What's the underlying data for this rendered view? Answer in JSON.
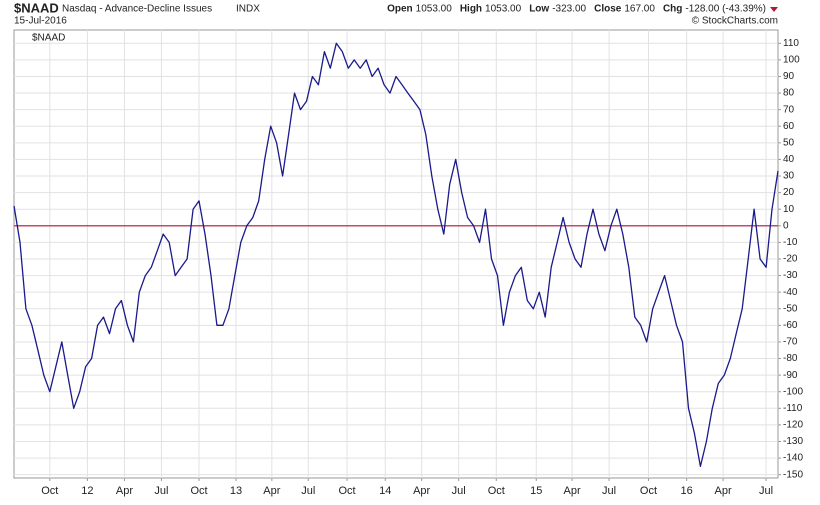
{
  "chart_data": {
    "type": "line",
    "symbol": "$NAAD",
    "title": "Nasdaq - Advance-Decline Issues",
    "exchange": "INDX",
    "date": "15-Jul-2016",
    "stats": [
      {
        "label": "Open",
        "value": "1053.00"
      },
      {
        "label": "High",
        "value": "1053.00"
      },
      {
        "label": "Low",
        "value": "-323.00"
      },
      {
        "label": "Close",
        "value": "167.00"
      },
      {
        "label": "Chg",
        "value": "-128.00 (-43.39%)"
      }
    ],
    "copyright": "© StockCharts.com",
    "series": [
      {
        "name": "$NAAD",
        "color": "#1a1a8c",
        "values": [
          12,
          -10,
          -50,
          -60,
          -75,
          -90,
          -100,
          -85,
          -70,
          -90,
          -110,
          -100,
          -85,
          -80,
          -60,
          -55,
          -65,
          -50,
          -45,
          -60,
          -70,
          -40,
          -30,
          -25,
          -15,
          -5,
          -10,
          -30,
          -25,
          -20,
          10,
          15,
          -5,
          -30,
          -60,
          -60,
          -50,
          -30,
          -10,
          0,
          5,
          15,
          40,
          60,
          50,
          30,
          55,
          80,
          70,
          75,
          90,
          85,
          105,
          95,
          110,
          105,
          95,
          100,
          95,
          100,
          90,
          95,
          85,
          80,
          90,
          85,
          80,
          75,
          70,
          55,
          30,
          10,
          -5,
          25,
          40,
          20,
          5,
          0,
          -10,
          10,
          -20,
          -30,
          -60,
          -40,
          -30,
          -25,
          -45,
          -50,
          -40,
          -55,
          -25,
          -10,
          5,
          -10,
          -20,
          -25,
          -5,
          10,
          -5,
          -15,
          0,
          10,
          -5,
          -25,
          -55,
          -60,
          -70,
          -50,
          -40,
          -30,
          -45,
          -60,
          -70,
          -110,
          -125,
          -145,
          -130,
          -110,
          -95,
          -90,
          -80,
          -65,
          -50,
          -20,
          10,
          -20,
          -25,
          10,
          33
        ]
      }
    ],
    "reference_line": {
      "value": 0,
      "color": "#b0183a"
    },
    "xlim": [
      0,
      128
    ],
    "xticks": [
      {
        "value": 6,
        "label": "Oct"
      },
      {
        "value": 12.3,
        "label": "12"
      },
      {
        "value": 18.5,
        "label": "Apr"
      },
      {
        "value": 24.7,
        "label": "Jul"
      },
      {
        "value": 31,
        "label": "Oct"
      },
      {
        "value": 37.2,
        "label": "13"
      },
      {
        "value": 43.2,
        "label": "Apr"
      },
      {
        "value": 49.3,
        "label": "Jul"
      },
      {
        "value": 55.8,
        "label": "Oct"
      },
      {
        "value": 62.2,
        "label": "14"
      },
      {
        "value": 68.3,
        "label": "Apr"
      },
      {
        "value": 74.5,
        "label": "Jul"
      },
      {
        "value": 80.8,
        "label": "Oct"
      },
      {
        "value": 87.5,
        "label": "15"
      },
      {
        "value": 93.5,
        "label": "Apr"
      },
      {
        "value": 99.7,
        "label": "Jul"
      },
      {
        "value": 106.3,
        "label": "Oct"
      },
      {
        "value": 112.7,
        "label": "16"
      },
      {
        "value": 118.8,
        "label": "Apr"
      },
      {
        "value": 126,
        "label": "Jul"
      }
    ],
    "ylim": [
      -152,
      118
    ],
    "yticks": [
      110,
      100,
      90,
      80,
      70,
      60,
      50,
      40,
      30,
      20,
      10,
      0,
      -10,
      -20,
      -30,
      -40,
      -50,
      -60,
      -70,
      -80,
      -90,
      -100,
      -110,
      -120,
      -130,
      -140,
      -150
    ],
    "grid": true
  }
}
